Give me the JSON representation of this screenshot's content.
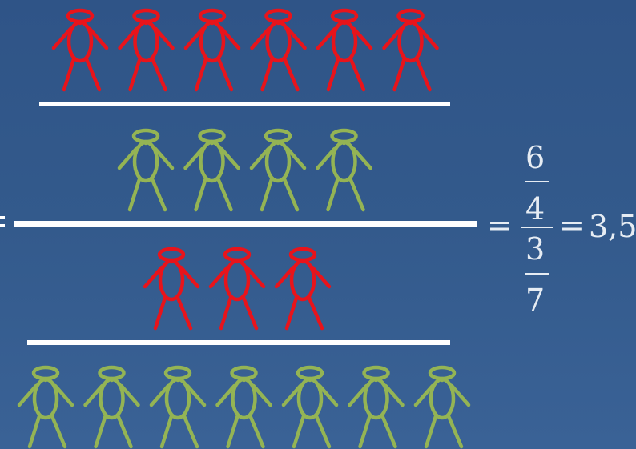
{
  "fraction_diagram": {
    "groups": [
      {
        "id": "top-red",
        "count": 6,
        "color": "#e8141b"
      },
      {
        "id": "upper-green",
        "count": 4,
        "color": "#94b454"
      },
      {
        "id": "lower-red",
        "count": 3,
        "color": "#e8141b"
      },
      {
        "id": "bottom-green",
        "count": 7,
        "color": "#94b454"
      }
    ]
  },
  "equation": {
    "eq1": "=",
    "inner_num_num": "6",
    "inner_num_den": "4",
    "inner_den_num": "3",
    "inner_den_den": "7",
    "eq2": "=",
    "result": "3,5"
  },
  "colors": {
    "background": "#335a8c",
    "bar": "#ffffff",
    "text": "#e6ecf3"
  }
}
